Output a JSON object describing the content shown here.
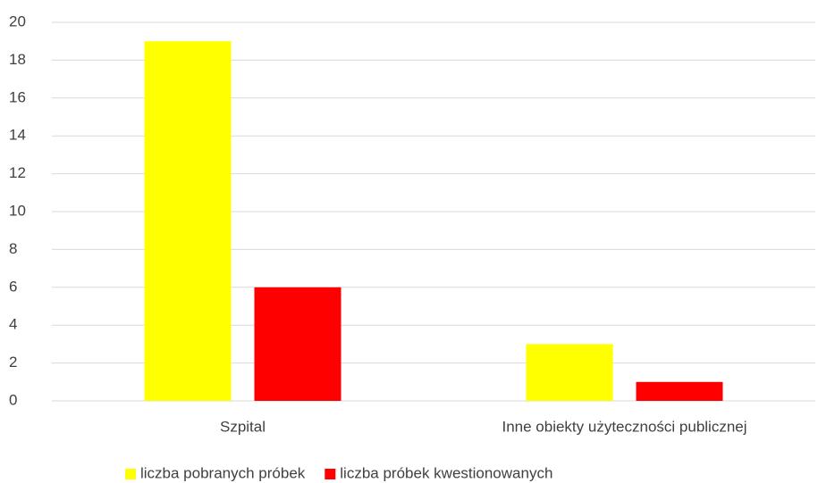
{
  "chart_data": {
    "type": "bar",
    "categories": [
      "Szpital",
      "Inne obiekty użyteczności publicznej"
    ],
    "series": [
      {
        "name": "liczba pobranych próbek",
        "color": "#ffff00",
        "values": [
          19,
          3
        ]
      },
      {
        "name": "liczba próbek kwestionowanych",
        "color": "#ff0000",
        "values": [
          6,
          1
        ]
      }
    ],
    "ylim": [
      0,
      20
    ],
    "yticks": [
      0,
      2,
      4,
      6,
      8,
      10,
      12,
      14,
      16,
      18,
      20
    ],
    "grid": true,
    "legend": "bottom"
  }
}
